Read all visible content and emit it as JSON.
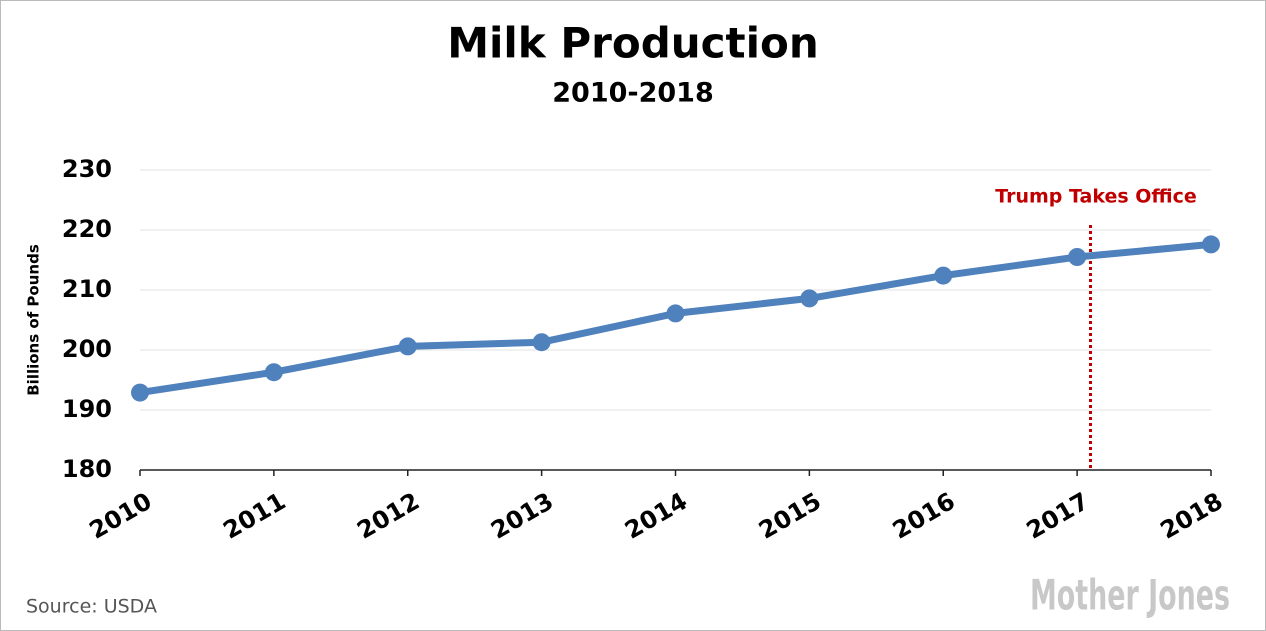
{
  "chart_data": {
    "type": "line",
    "title": "Milk Production",
    "subtitle": "2010-2018",
    "y_label": "Billions of Pounds",
    "x": [
      2010,
      2011,
      2012,
      2013,
      2014,
      2015,
      2016,
      2017,
      2018
    ],
    "xlim": [
      2010,
      2018
    ],
    "xticks": [
      2010,
      2011,
      2012,
      2013,
      2014,
      2015,
      2016,
      2017,
      2018
    ],
    "series": [
      {
        "name": "Milk Production",
        "color": "#4f81bd",
        "values": [
          192.9,
          196.3,
          200.6,
          201.3,
          206.1,
          208.6,
          212.4,
          215.5,
          217.6
        ]
      }
    ],
    "ylim": [
      180,
      230
    ],
    "yticks": [
      180,
      190,
      200,
      210,
      220,
      230
    ],
    "grid": true,
    "annotation": {
      "text": "Trump Takes Office",
      "x": 2017.1,
      "color": "#c00000"
    },
    "source": "Source: USDA",
    "logo": "Mother Jones"
  }
}
